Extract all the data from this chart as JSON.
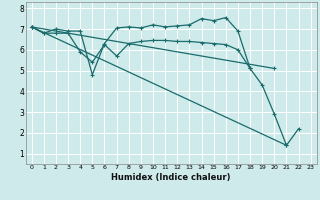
{
  "title": "",
  "xlabel": "Humidex (Indice chaleur)",
  "xlim": [
    -0.5,
    23.5
  ],
  "ylim": [
    0.5,
    8.3
  ],
  "yticks": [
    1,
    2,
    3,
    4,
    5,
    6,
    7,
    8
  ],
  "xticks": [
    0,
    1,
    2,
    3,
    4,
    5,
    6,
    7,
    8,
    9,
    10,
    11,
    12,
    13,
    14,
    15,
    16,
    17,
    18,
    19,
    20,
    21,
    22,
    23
  ],
  "bg_color": "#ceeaea",
  "grid_color": "#ffffff",
  "line_color": "#1a6b6b",
  "line_width": 0.9,
  "marker": "+",
  "marker_size": 3.5,
  "lines": [
    {
      "x": [
        0,
        1,
        2,
        3,
        4,
        5,
        6,
        7,
        8,
        9,
        10,
        11,
        12,
        13,
        14,
        15,
        16,
        17,
        18,
        19,
        20,
        21,
        22
      ],
      "y": [
        7.1,
        6.8,
        7.0,
        6.9,
        6.9,
        4.8,
        6.3,
        7.05,
        7.1,
        7.05,
        7.2,
        7.1,
        7.15,
        7.2,
        7.5,
        7.4,
        7.55,
        6.9,
        5.1,
        4.3,
        2.9,
        1.4,
        2.2
      ]
    },
    {
      "x": [
        0,
        1,
        2,
        3,
        4,
        5,
        6,
        7,
        8,
        9,
        10,
        11,
        12,
        13,
        14,
        15,
        16,
        17,
        18
      ],
      "y": [
        7.1,
        6.8,
        6.8,
        6.8,
        5.9,
        5.4,
        6.25,
        5.7,
        6.3,
        6.4,
        6.45,
        6.45,
        6.4,
        6.4,
        6.35,
        6.3,
        6.25,
        6.0,
        5.1
      ]
    },
    {
      "x": [
        0,
        20
      ],
      "y": [
        7.1,
        5.1
      ]
    },
    {
      "x": [
        0,
        21
      ],
      "y": [
        7.1,
        1.4
      ]
    }
  ]
}
